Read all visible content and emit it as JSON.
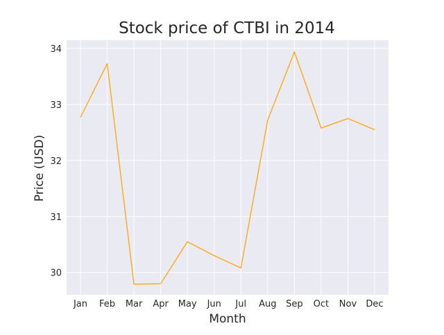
{
  "chart_data": {
    "type": "line",
    "title": "Stock price of CTBI in 2014",
    "xlabel": "Month",
    "ylabel": "Price (USD)",
    "categories": [
      "Jan",
      "Feb",
      "Mar",
      "Apr",
      "May",
      "Jun",
      "Jul",
      "Aug",
      "Sep",
      "Oct",
      "Nov",
      "Dec"
    ],
    "series": [
      {
        "values": [
          32.77,
          33.73,
          29.79,
          29.8,
          30.55,
          30.3,
          30.08,
          32.72,
          33.94,
          32.58,
          32.75,
          32.55
        ]
      }
    ],
    "ylim": [
      29.6,
      34.15
    ],
    "yticks": [
      30,
      31,
      32,
      33,
      34
    ],
    "grid": true,
    "colors": {
      "line": "#ffa500",
      "plot_background": "#eaeaf2",
      "grid": "#ffffff"
    }
  }
}
